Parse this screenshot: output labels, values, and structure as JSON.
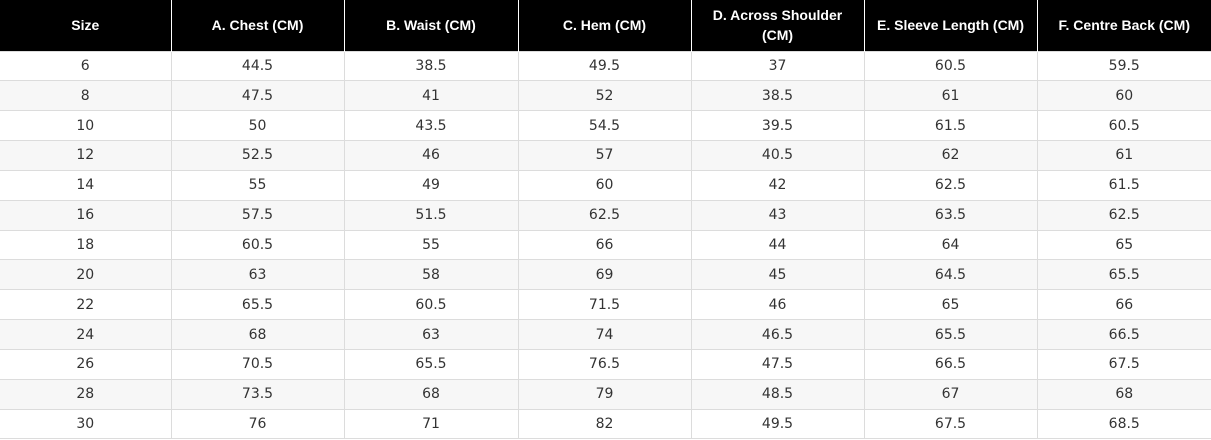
{
  "size_chart": {
    "headers": [
      "Size",
      "A. Chest (CM)",
      "B. Waist (CM)",
      "C. Hem (CM)",
      "D. Across Shoulder (CM)",
      "E. Sleeve Length (CM)",
      "F. Centre Back (CM)"
    ],
    "rows": [
      [
        "6",
        "44.5",
        "38.5",
        "49.5",
        "37",
        "60.5",
        "59.5"
      ],
      [
        "8",
        "47.5",
        "41",
        "52",
        "38.5",
        "61",
        "60"
      ],
      [
        "10",
        "50",
        "43.5",
        "54.5",
        "39.5",
        "61.5",
        "60.5"
      ],
      [
        "12",
        "52.5",
        "46",
        "57",
        "40.5",
        "62",
        "61"
      ],
      [
        "14",
        "55",
        "49",
        "60",
        "42",
        "62.5",
        "61.5"
      ],
      [
        "16",
        "57.5",
        "51.5",
        "62.5",
        "43",
        "63.5",
        "62.5"
      ],
      [
        "18",
        "60.5",
        "55",
        "66",
        "44",
        "64",
        "65"
      ],
      [
        "20",
        "63",
        "58",
        "69",
        "45",
        "64.5",
        "65.5"
      ],
      [
        "22",
        "65.5",
        "60.5",
        "71.5",
        "46",
        "65",
        "66"
      ],
      [
        "24",
        "68",
        "63",
        "74",
        "46.5",
        "65.5",
        "66.5"
      ],
      [
        "26",
        "70.5",
        "65.5",
        "76.5",
        "47.5",
        "66.5",
        "67.5"
      ],
      [
        "28",
        "73.5",
        "68",
        "79",
        "48.5",
        "67",
        "68"
      ],
      [
        "30",
        "76",
        "71",
        "82",
        "49.5",
        "67.5",
        "68.5"
      ]
    ]
  }
}
